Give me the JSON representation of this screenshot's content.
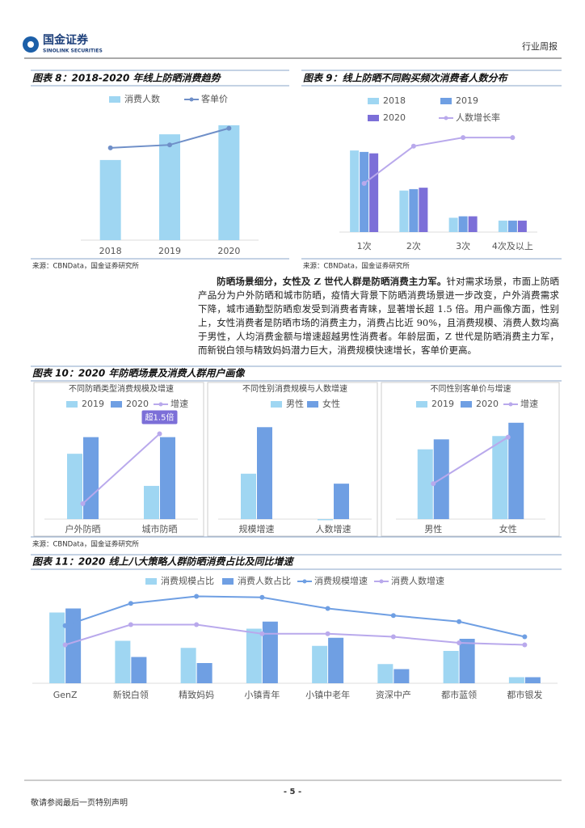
{
  "document": {
    "header": {
      "logo": "国金证券",
      "logo_en": "SINOLINK SECURITIES",
      "report_type": "行业周报"
    },
    "figures": [
      {
        "title": "图表 8：2018-2020 年线上防晒消费趋势",
        "source": "来源：CBNData，国金证券研究所"
      },
      {
        "title": "图表 9：线上防晒不同购买频次消费者人数分布",
        "source": "来源：CBNData，国金证券研究所"
      },
      {
        "title": "图表 10：2020 年防晒场景及消费人群用户画像",
        "source": "来源：CBNData，国金证券研究所"
      },
      {
        "title": "图表 11：2020 线上八大策略人群防晒消费占比及同比增速"
      }
    ],
    "paragraph": {
      "lead": "防晒场景细分，女性及 Z 世代人群是防晒消费主力军。",
      "body": "针对需求场景，市面上防晒产品分为户外防晒和城市防晒，疫情大背景下防晒消费场景进一步改变，户外消费需求下降，城市通勤型防晒愈发受到消费者青睐，显著增长超 1.5 倍。用户画像方面，性别上，女性消费者是防晒市场的消费主力，消费占比近 90%，且消费规模、消费人数均高于男性，人均消费金额与增速超越男性消费者。年龄层面，Z 世代是防晒消费主力军，而新锐白领与精致妈妈潜力巨大，消费规模快速增长，客单价更高。"
    },
    "footer": {
      "page": "- 5 -",
      "disclaimer": "敬请参阅最后一页特别声明"
    }
  },
  "chart_data": [
    {
      "type": "bar",
      "categories": [
        "2018",
        "2019",
        "2020"
      ],
      "ylim": [
        0,
        100
      ],
      "series": [
        {
          "name": "消费人数",
          "color": "#9fd6f2",
          "values": [
            53,
            70,
            76
          ]
        },
        {
          "name": "客单价",
          "color": "#6f8fc8",
          "type": "line",
          "values": [
            61,
            63,
            74
          ]
        }
      ]
    },
    {
      "type": "bar",
      "categories": [
        "1次",
        "2次",
        "3次",
        "4次及以上"
      ],
      "ylim": [
        0,
        100
      ],
      "series": [
        {
          "name": "2018",
          "color": "#9fd6f2",
          "values": [
            57,
            29,
            10,
            8
          ]
        },
        {
          "name": "2019",
          "color": "#6f9fe3",
          "values": [
            56,
            30,
            11,
            8
          ]
        },
        {
          "name": "2020",
          "color": "#7c6fd8",
          "values": [
            55,
            31,
            11,
            8
          ]
        },
        {
          "name": "人数增长率",
          "color": "#b9a9ec",
          "type": "line",
          "values": [
            34,
            60,
            66,
            66
          ]
        }
      ]
    },
    {
      "type": "bar",
      "title": "不同防晒类型消费规模及增速",
      "categories": [
        "户外防晒",
        "城市防晒"
      ],
      "ylim": [
        0,
        100
      ],
      "annotation": "超1.5倍",
      "series": [
        {
          "name": "2019",
          "color": "#9fd6f2",
          "values": [
            59,
            30
          ]
        },
        {
          "name": "2020",
          "color": "#6f9fe3",
          "values": [
            74,
            74
          ]
        },
        {
          "name": "增速",
          "color": "#b9a9ec",
          "type": "line",
          "values": [
            14,
            77
          ]
        }
      ]
    },
    {
      "type": "bar",
      "title": "不同性别消费规模与人数增速",
      "categories": [
        "规模增速",
        "人数增速"
      ],
      "ylim": [
        0,
        100
      ],
      "series": [
        {
          "name": "男性",
          "color": "#9fd6f2",
          "values": [
            41,
            -1
          ]
        },
        {
          "name": "女性",
          "color": "#6f9fe3",
          "values": [
            83,
            32
          ]
        }
      ]
    },
    {
      "type": "bar",
      "title": "不同性别客单价与增速",
      "categories": [
        "男性",
        "女性"
      ],
      "ylim": [
        0,
        100
      ],
      "series": [
        {
          "name": "2019",
          "color": "#9fd6f2",
          "values": [
            63,
            75
          ]
        },
        {
          "name": "2020",
          "color": "#6f9fe3",
          "values": [
            72,
            87
          ]
        },
        {
          "name": "增速",
          "color": "#b9a9ec",
          "type": "line",
          "values": [
            32,
            74
          ]
        }
      ]
    },
    {
      "type": "bar",
      "categories": [
        "GenZ",
        "新锐白领",
        "精致妈妈",
        "小镇青年",
        "小镇中老年",
        "资深中产",
        "都市蓝领",
        "都市银发"
      ],
      "ylim": [
        0,
        100
      ],
      "series": [
        {
          "name": "消费规模占比",
          "color": "#9fd6f2",
          "values": [
            70,
            42,
            35,
            54,
            37,
            19,
            32,
            6
          ]
        },
        {
          "name": "消费人数占比",
          "color": "#6f9fe3",
          "values": [
            74,
            26,
            20,
            61,
            45,
            14,
            44,
            6
          ]
        },
        {
          "name": "消费规模增速",
          "color": "#6f9fe3",
          "type": "line",
          "values": [
            57,
            79,
            86,
            85,
            74,
            67,
            61,
            46
          ]
        },
        {
          "name": "消费人数增速",
          "color": "#b9a9ec",
          "type": "line",
          "values": [
            38,
            58,
            58,
            49,
            49,
            46,
            40,
            38
          ]
        }
      ]
    }
  ]
}
